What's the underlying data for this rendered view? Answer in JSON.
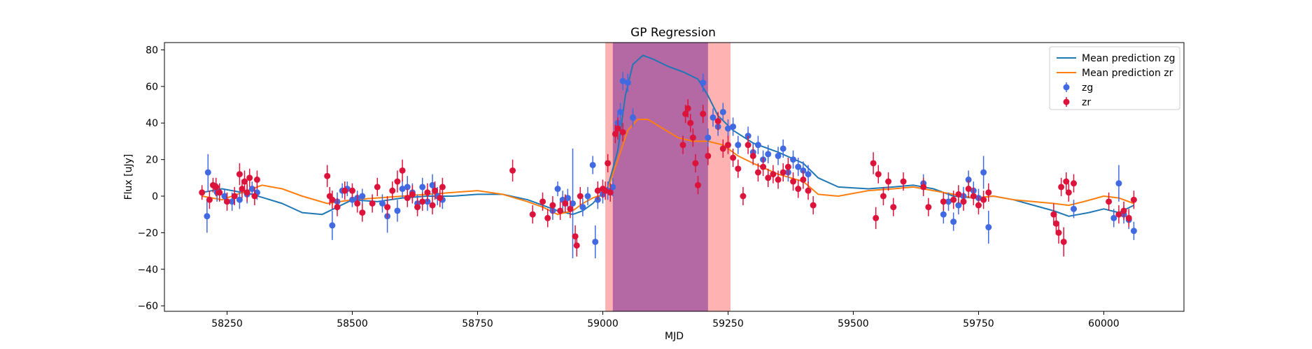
{
  "chart_data": {
    "type": "scatter",
    "title": "GP Regression",
    "xlabel": "MJD",
    "ylabel": "Flux [uJy]",
    "xlim": [
      58125,
      60160
    ],
    "ylim": [
      -63,
      84
    ],
    "x_ticks": [
      58250,
      58500,
      58750,
      59000,
      59250,
      59500,
      59750,
      60000
    ],
    "y_ticks": [
      -60,
      -40,
      -20,
      0,
      20,
      40,
      60,
      80
    ],
    "grid": false,
    "legend_position": "top-right",
    "shaded_regions": [
      {
        "x0": 59005,
        "x1": 59255,
        "color": "#ff7f7f",
        "opacity": 0.6
      },
      {
        "x0": 59020,
        "x1": 59210,
        "color": "#9b4f9f",
        "opacity": 0.75
      }
    ],
    "series": [
      {
        "name": "Mean prediction zg",
        "kind": "line",
        "color": "#1f77b4",
        "x": [
          58200,
          58240,
          58300,
          58360,
          58400,
          58440,
          58470,
          58500,
          58550,
          58600,
          58650,
          58700,
          58750,
          58800,
          58850,
          58880,
          58910,
          58940,
          58960,
          58980,
          59000,
          59010,
          59030,
          59045,
          59060,
          59080,
          59100,
          59130,
          59160,
          59190,
          59210,
          59230,
          59260,
          59300,
          59350,
          59400,
          59430,
          59470,
          59530,
          59580,
          59620,
          59660,
          59700,
          59740,
          59780,
          59820,
          59860,
          59900,
          59930,
          59970,
          60000,
          60030,
          60060
        ],
        "y": [
          2,
          4,
          1,
          -4,
          -9,
          -10,
          -6,
          -2,
          -3,
          -1,
          0,
          0,
          1,
          1,
          -2,
          -5,
          -8,
          -10,
          -8,
          -4,
          2,
          5,
          25,
          55,
          72,
          77,
          75,
          71,
          68,
          64,
          55,
          44,
          36,
          29,
          24,
          18,
          10,
          5,
          4,
          5,
          6,
          4,
          0,
          -1,
          0,
          -2,
          -5,
          -8,
          -11,
          -9,
          -7,
          -9,
          -5
        ]
      },
      {
        "name": "Mean prediction zr",
        "kind": "line",
        "color": "#ff7f0e",
        "x": [
          58200,
          58240,
          58280,
          58320,
          58360,
          58400,
          58450,
          58500,
          58550,
          58600,
          58650,
          58700,
          58750,
          58800,
          58850,
          58880,
          58910,
          58940,
          58960,
          58980,
          59000,
          59010,
          59030,
          59050,
          59070,
          59090,
          59120,
          59150,
          59180,
          59210,
          59240,
          59270,
          59300,
          59350,
          59400,
          59430,
          59470,
          59530,
          59580,
          59620,
          59660,
          59700,
          59740,
          59780,
          59820,
          59860,
          59900,
          59930,
          59960,
          60000,
          60030,
          60060
        ],
        "y": [
          0,
          -2,
          2,
          6,
          4,
          0,
          -4,
          -2,
          -1,
          0,
          1,
          2,
          3,
          1,
          -3,
          -6,
          -10,
          -8,
          -4,
          -1,
          1,
          4,
          20,
          36,
          42,
          42,
          37,
          32,
          30,
          30,
          28,
          22,
          18,
          12,
          8,
          1,
          0,
          3,
          4,
          5,
          3,
          1,
          -1,
          0,
          -2,
          -3,
          -4,
          -5,
          -3,
          0,
          -1,
          -4
        ]
      },
      {
        "name": "zg",
        "kind": "points",
        "color": "#4169e1",
        "x": [
          58210,
          58212,
          58230,
          58245,
          58260,
          58275,
          58290,
          58300,
          58310,
          58460,
          58470,
          58480,
          58490,
          58500,
          58510,
          58520,
          58560,
          58570,
          58590,
          58600,
          58610,
          58620,
          58630,
          58640,
          58650,
          58660,
          58670,
          58680,
          58900,
          58910,
          58920,
          58930,
          58940,
          58960,
          58970,
          58980,
          58985,
          58990,
          59000,
          59010,
          59020,
          59030,
          59035,
          59040,
          59050,
          59060,
          59200,
          59210,
          59220,
          59230,
          59240,
          59250,
          59260,
          59270,
          59290,
          59300,
          59310,
          59320,
          59330,
          59350,
          59360,
          59370,
          59380,
          59390,
          59400,
          59410,
          59640,
          59680,
          59690,
          59700,
          59710,
          59720,
          59730,
          59740,
          59750,
          59760,
          59770,
          59940,
          60020,
          60030,
          60040,
          60050,
          60060
        ],
        "y": [
          -11,
          13,
          2,
          0,
          -3,
          -2,
          1,
          4,
          2,
          -16,
          -3,
          3,
          4,
          -2,
          -1,
          0,
          -4,
          -11,
          -8,
          4,
          5,
          2,
          -4,
          5,
          -3,
          6,
          0,
          -2,
          -8,
          4,
          -2,
          -1,
          -4,
          -6,
          0,
          17,
          -25,
          -2,
          1,
          3,
          5,
          40,
          46,
          63,
          62,
          43,
          62,
          32,
          43,
          38,
          46,
          37,
          38,
          28,
          33,
          24,
          28,
          20,
          23,
          22,
          26,
          13,
          20,
          16,
          14,
          12,
          7,
          -10,
          -3,
          -14,
          -5,
          0,
          9,
          3,
          -1,
          13,
          -17,
          -7,
          -12,
          7,
          -10,
          -13,
          -19
        ],
        "err": [
          9,
          10,
          5,
          4,
          5,
          5,
          5,
          4,
          4,
          8,
          5,
          4,
          4,
          4,
          4,
          4,
          5,
          9,
          6,
          5,
          6,
          5,
          5,
          5,
          5,
          6,
          5,
          5,
          5,
          4,
          5,
          5,
          30,
          5,
          5,
          5,
          9,
          5,
          5,
          5,
          5,
          5,
          5,
          5,
          5,
          5,
          5,
          5,
          5,
          5,
          5,
          5,
          5,
          5,
          5,
          5,
          5,
          5,
          5,
          5,
          5,
          5,
          5,
          5,
          5,
          5,
          5,
          5,
          5,
          5,
          5,
          5,
          5,
          5,
          5,
          9,
          9,
          5,
          5,
          10,
          5,
          5,
          5
        ]
      },
      {
        "name": "zr",
        "kind": "points",
        "color": "#dc143c",
        "x": [
          58200,
          58215,
          58222,
          58228,
          58235,
          58250,
          58265,
          58275,
          58280,
          58285,
          58290,
          58295,
          58305,
          58310,
          58450,
          58455,
          58460,
          58470,
          58485,
          58500,
          58510,
          58520,
          58540,
          58550,
          58570,
          58580,
          58590,
          58600,
          58610,
          58620,
          58630,
          58640,
          58650,
          58660,
          58665,
          58675,
          58680,
          58820,
          58860,
          58880,
          58890,
          58900,
          58915,
          58925,
          58935,
          58945,
          58948,
          58955,
          58990,
          59000,
          59005,
          59010,
          59015,
          59025,
          59030,
          59040,
          59160,
          59165,
          59170,
          59175,
          59180,
          59185,
          59190,
          59200,
          59210,
          59230,
          59240,
          59250,
          59260,
          59270,
          59280,
          59290,
          59300,
          59310,
          59320,
          59330,
          59340,
          59350,
          59360,
          59370,
          59380,
          59390,
          59400,
          59410,
          59420,
          59540,
          59545,
          59550,
          59560,
          59570,
          59580,
          59600,
          59640,
          59650,
          59680,
          59700,
          59710,
          59720,
          59730,
          59740,
          59750,
          59760,
          59770,
          59900,
          59905,
          59910,
          59915,
          59920,
          59925,
          59930,
          59940,
          60010,
          60030,
          60040,
          60050,
          60060
        ],
        "y": [
          2,
          -2,
          6,
          5,
          2,
          -3,
          0,
          12,
          4,
          8,
          2,
          10,
          0,
          9,
          11,
          0,
          -2,
          -6,
          3,
          3,
          -4,
          -9,
          -4,
          5,
          -6,
          3,
          8,
          14,
          -1,
          1,
          -6,
          -3,
          2,
          -5,
          3,
          -1,
          5,
          14,
          -10,
          -3,
          -12,
          -5,
          -8,
          -4,
          -7,
          -22,
          -27,
          0,
          3,
          4,
          3,
          18,
          2,
          34,
          37,
          35,
          28,
          45,
          48,
          40,
          32,
          18,
          6,
          45,
          22,
          41,
          26,
          28,
          21,
          15,
          0,
          28,
          22,
          13,
          16,
          10,
          12,
          9,
          13,
          16,
          8,
          4,
          9,
          3,
          -5,
          18,
          -12,
          12,
          0,
          8,
          -6,
          8,
          5,
          -6,
          -3,
          -2,
          1,
          -3,
          4,
          0,
          -5,
          -2,
          2,
          -10,
          -15,
          -20,
          5,
          -25,
          8,
          2,
          7,
          -3,
          -10,
          -8,
          -12,
          -2
        ],
        "err": [
          4,
          5,
          4,
          5,
          5,
          5,
          5,
          6,
          5,
          6,
          5,
          5,
          5,
          5,
          6,
          5,
          5,
          5,
          5,
          4,
          5,
          5,
          5,
          5,
          6,
          5,
          6,
          6,
          5,
          5,
          5,
          5,
          5,
          5,
          5,
          5,
          5,
          6,
          5,
          5,
          5,
          5,
          5,
          5,
          5,
          6,
          6,
          5,
          5,
          5,
          5,
          5,
          5,
          5,
          6,
          5,
          5,
          5,
          5,
          5,
          5,
          5,
          5,
          5,
          5,
          5,
          5,
          5,
          5,
          5,
          5,
          5,
          5,
          5,
          5,
          5,
          5,
          5,
          5,
          5,
          5,
          5,
          5,
          5,
          5,
          6,
          6,
          5,
          5,
          5,
          5,
          5,
          5,
          5,
          5,
          5,
          5,
          5,
          5,
          5,
          5,
          5,
          5,
          6,
          6,
          6,
          5,
          8,
          5,
          5,
          5,
          5,
          5,
          5,
          5,
          5
        ]
      }
    ]
  }
}
